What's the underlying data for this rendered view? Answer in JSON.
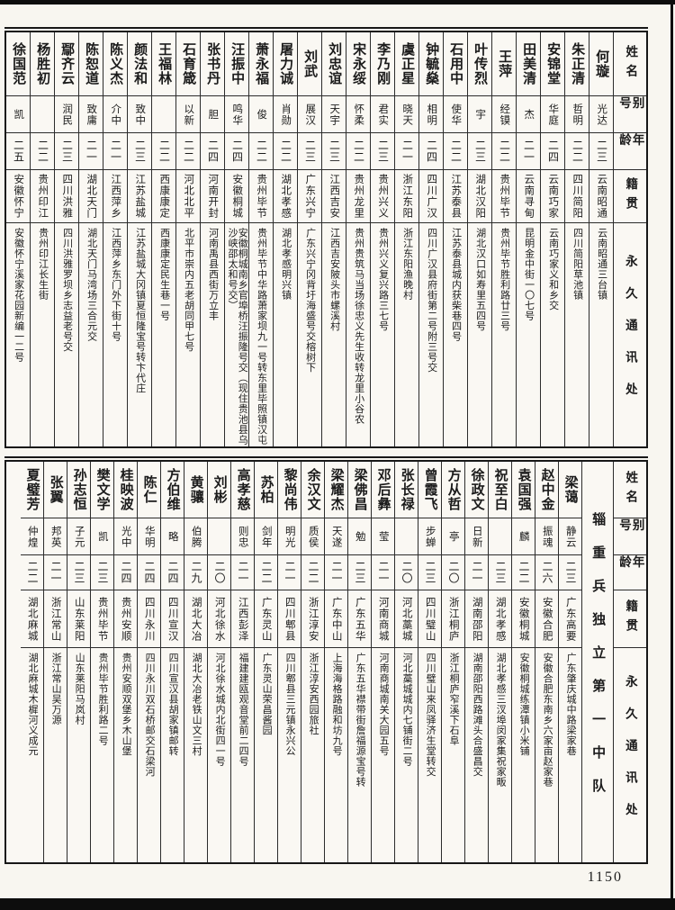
{
  "page": {
    "number": "1150"
  },
  "headers": {
    "name": "姓名",
    "alias": "别号",
    "age": "年龄",
    "native": "籍贯",
    "address": "永久通讯处"
  },
  "bottom_unit_label": "辎重兵独立第一中队",
  "top_table": {
    "people": [
      {
        "name": "何璇",
        "alias": "光达",
        "age": "二三",
        "native": "云南昭通",
        "address": "云南昭通三台镇"
      },
      {
        "name": "朱正清",
        "alias": "哲明",
        "age": "二二",
        "native": "四川简阳",
        "address": "四川简阳草池镇"
      },
      {
        "name": "安锦堂",
        "alias": "华庭",
        "age": "二四",
        "native": "云南巧家",
        "address": "云南巧家义和乡交"
      },
      {
        "name": "田美清",
        "alias": "杰",
        "age": "二一",
        "native": "云南寻甸",
        "address": "昆明金中街一〇七号"
      },
      {
        "name": "王萍",
        "alias": "经镆",
        "age": "二二",
        "native": "贵州毕节",
        "address": "贵州毕节胜利路廿三号"
      },
      {
        "name": "叶传烈",
        "alias": "宇",
        "age": "二三",
        "native": "湖北汉阳",
        "address": "湖北汉口如寿里五四号"
      },
      {
        "name": "石用中",
        "alias": "使华",
        "age": "二二",
        "native": "江苏泰县",
        "address": "江苏泰县城内获柴巷四号"
      },
      {
        "name": "钟毓燊",
        "alias": "相明",
        "age": "二四",
        "native": "四川广汉",
        "address": "四川广汉县府街第二号附三号交"
      },
      {
        "name": "虞正星",
        "alias": "晓天",
        "age": "二一",
        "native": "浙江东阳",
        "address": "浙江东阳渔晚村"
      },
      {
        "name": "李乃刚",
        "alias": "君实",
        "age": "二三",
        "native": "贵州兴义",
        "address": "贵州兴义复兴路三七号"
      },
      {
        "name": "宋永绥",
        "alias": "怀柔",
        "age": "二二",
        "native": "贵州龙里",
        "address": "贵州贵筑马当场徐忠义先生收转龙里小谷农"
      },
      {
        "name": "刘忠谊",
        "alias": "天宇",
        "age": "二三",
        "native": "江西吉安",
        "address": "江西吉安陂头市螺溪村"
      },
      {
        "name": "刘武",
        "alias": "展汉",
        "age": "二三",
        "native": "广东兴宁",
        "address": "广东兴宁冈背圩海盛号交榕树下"
      },
      {
        "name": "屠力诚",
        "alias": "肖勋",
        "age": "二二",
        "native": "湖北孝感",
        "address": "湖北孝感明兴镇"
      },
      {
        "name": "萧永福",
        "alias": "俊",
        "age": "二二",
        "native": "贵州毕节",
        "address": "贵州毕节中华路萧家坝九一号转东里毕照镇汉屯"
      },
      {
        "name": "汪振中",
        "alias": "鸣华",
        "age": "二四",
        "native": "安徽桐城",
        "address": "安徽桐城南乡官埠桥汪振隆号交（现住贵池县乌沙峡邵太和号交）"
      },
      {
        "name": "张书丹",
        "alias": "胆",
        "age": "二四",
        "native": "河南开封",
        "address": "河南禹县西街万立丰"
      },
      {
        "name": "石育箴",
        "alias": "以新",
        "age": "二二",
        "native": "河北北平",
        "address": "北平市崇内五老胡同甲七号"
      },
      {
        "name": "王福林",
        "alias": "",
        "age": "二二",
        "native": "西康康定",
        "address": "西康康定民生巷一号"
      },
      {
        "name": "颜法和",
        "alias": "致中",
        "age": "二三",
        "native": "江苏盐城",
        "address": "江苏盐城大冈镇夏恒隆宝号转卞代庄"
      },
      {
        "name": "陈义杰",
        "alias": "介中",
        "age": "二一",
        "native": "江西萍乡",
        "address": "江西萍乡东门外下街十号"
      },
      {
        "name": "陈恕道",
        "alias": "致庸",
        "age": "二一",
        "native": "湖北天门",
        "address": "湖北天门马湾场三合元交"
      },
      {
        "name": "鄢齐云",
        "alias": "润民",
        "age": "二三",
        "native": "四川洪雅",
        "address": "四川洪雅罗坝乡志益老号交"
      },
      {
        "name": "杨胜初",
        "alias": "",
        "age": "二二",
        "native": "贵州印江",
        "address": "贵州印江长生街"
      },
      {
        "name": "徐国范",
        "alias": "凯",
        "age": "二五",
        "native": "安徽怀宁",
        "address": "安徽怀宁溪家花园新编一二号"
      }
    ]
  },
  "bottom_table": {
    "people": [
      {
        "name": "梁蔼",
        "alias": "静云",
        "age": "二三",
        "native": "广东高要",
        "address": "广东肇庆城中路梁家巷"
      },
      {
        "name": "赵中金",
        "alias": "振魂",
        "age": "二六",
        "native": "安徽合肥",
        "address": "安徽合肥东南乡六家亩赵家巷"
      },
      {
        "name": "袁国强",
        "alias": "麟",
        "age": "二二",
        "native": "安徽桐城",
        "address": "安徽桐城练潭镇小米铺"
      },
      {
        "name": "祝至白",
        "alias": "",
        "age": "二三",
        "native": "湖北孝感",
        "address": "湖北孝感三汊埠闵家集祝家畈"
      },
      {
        "name": "徐政文",
        "alias": "日新",
        "age": "二一",
        "native": "湖南邵阳",
        "address": "湖南邵阳西路滩头合盛昌交"
      },
      {
        "name": "方从哲",
        "alias": "亭",
        "age": "二〇",
        "native": "浙江桐庐",
        "address": "浙江桐庐窄溪下石阜"
      },
      {
        "name": "曾霞飞",
        "alias": "步蝉",
        "age": "二三",
        "native": "四川璧山",
        "address": "四川璧山来凤驿济生堂转交"
      },
      {
        "name": "张长禄",
        "alias": "",
        "age": "二〇",
        "native": "河北藁城",
        "address": "河北藁城城内七铺街二号"
      },
      {
        "name": "邓后彝",
        "alias": "莹",
        "age": "二一",
        "native": "河南商城",
        "address": "河南商城南关大园五号"
      },
      {
        "name": "梁佛昌",
        "alias": "勉",
        "age": "二三",
        "native": "广东五华",
        "address": "广东五华襟带街詹福源宝号转"
      },
      {
        "name": "梁耀杰",
        "alias": "天遂",
        "age": "二一",
        "native": "广东中山",
        "address": "上海海格路融和坊九号"
      },
      {
        "name": "余汉文",
        "alias": "质侯",
        "age": "二二",
        "native": "浙江淳安",
        "address": "浙江淳安西园旅社"
      },
      {
        "name": "黎尚伟",
        "alias": "明光",
        "age": "二一",
        "native": "四川郫县",
        "address": "四川郫县三元镇永兴公"
      },
      {
        "name": "苏柏",
        "alias": "剑年",
        "age": "二二",
        "native": "广东灵山",
        "address": "广东灵山荣昌酱园"
      },
      {
        "name": "高孝慈",
        "alias": "则忠",
        "age": "二一",
        "native": "江西彭泽",
        "address": "福建建瓯观音堂前二四号"
      },
      {
        "name": "刘彬",
        "alias": "",
        "age": "二〇",
        "native": "河北徐水",
        "address": "河北徐水城内北街四一号"
      },
      {
        "name": "黄骧",
        "alias": "伯腾",
        "age": "二九",
        "native": "湖北大冶",
        "address": "湖北大冶老铁山文三村"
      },
      {
        "name": "方伯维",
        "alias": "略",
        "age": "二四",
        "native": "四川宣汉",
        "address": "四川宣汉县胡家镇邮转"
      },
      {
        "name": "陈仁",
        "alias": "华明",
        "age": "二四",
        "native": "四川永川",
        "address": "四川永川双石桥邮交石梁河"
      },
      {
        "name": "桂映波",
        "alias": "光中",
        "age": "二四",
        "native": "贵州安顺",
        "address": "贵州安顺双堡乡木山堡"
      },
      {
        "name": "樊文学",
        "alias": "凯",
        "age": "二三",
        "native": "贵州毕节",
        "address": "贵州毕节胜利路二号"
      },
      {
        "name": "孙志恒",
        "alias": "子元",
        "age": "二三",
        "native": "山东莱阳",
        "address": "山东莱阳马岚村"
      },
      {
        "name": "张翼",
        "alias": "邦英",
        "age": "二一",
        "native": "浙江常山",
        "address": "浙江常山吴万源"
      },
      {
        "name": "夏璧芳",
        "alias": "仲煌",
        "age": "二二",
        "native": "湖北麻城",
        "address": "湖北麻城木樨河义成元"
      }
    ]
  }
}
